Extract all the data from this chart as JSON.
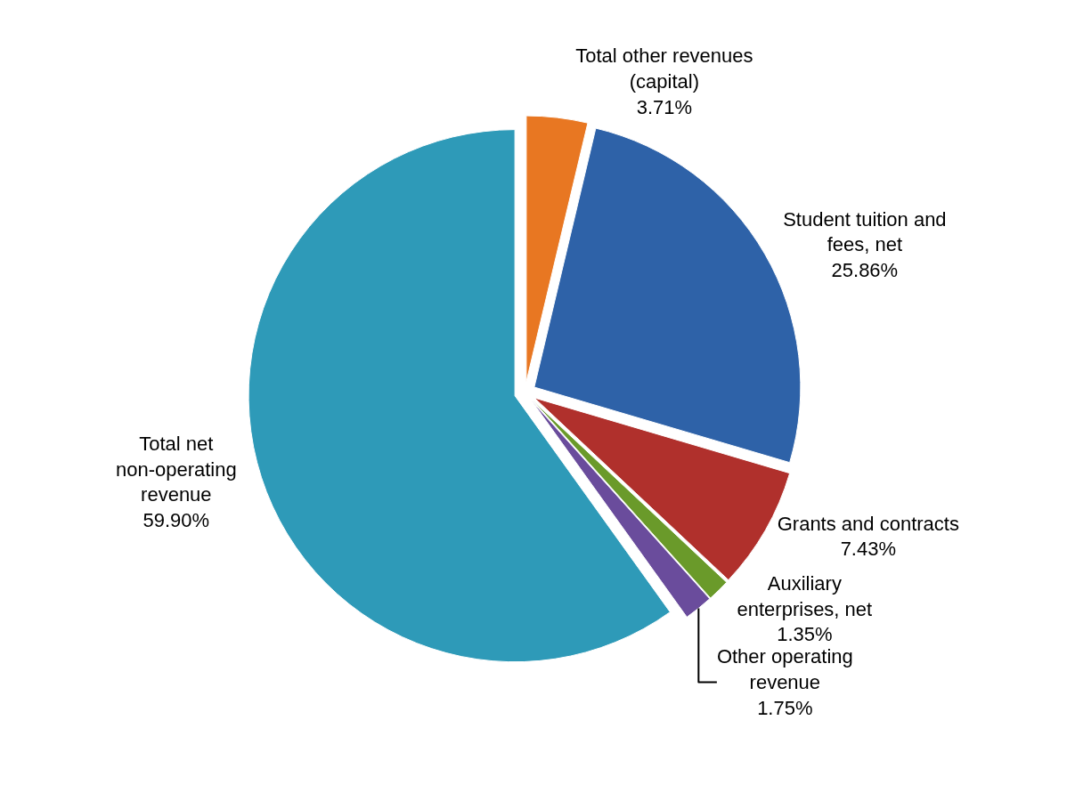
{
  "chart_data": {
    "type": "pie",
    "categories": [
      "Total other revenues (capital)",
      "Student tuition and fees, net",
      "Grants and contracts",
      "Auxiliary enterprises, net",
      "Other operating revenue",
      "Total net non-operating revenue"
    ],
    "values": [
      3.71,
      25.86,
      7.43,
      1.35,
      1.75,
      59.9
    ],
    "value_labels": [
      "3.71%",
      "25.86%",
      "7.43%",
      "1.35%",
      "1.75%",
      "59.90%"
    ],
    "colors": [
      "#e87722",
      "#2e62a8",
      "#b0302c",
      "#6a9a2a",
      "#6a4c9c",
      "#2e9ab8"
    ],
    "legend": false
  }
}
